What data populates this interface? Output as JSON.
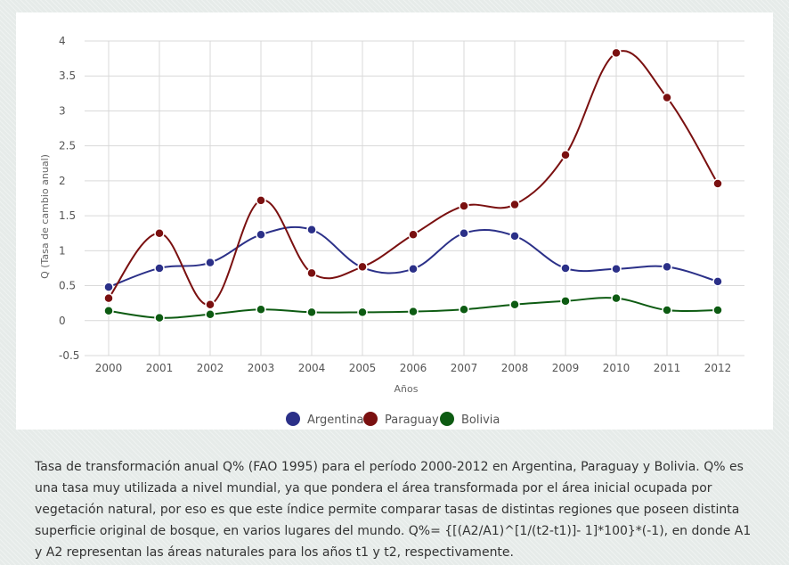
{
  "chart_data": {
    "type": "line",
    "title": "",
    "xlabel": "Años",
    "ylabel": "Q (Tasa de cambio anual)",
    "ylim": [
      -0.5,
      4
    ],
    "yticks": [
      "4",
      "3.5",
      "3",
      "2.5",
      "2",
      "1.5",
      "1",
      "0.5",
      "0",
      "-0.5"
    ],
    "ytick_values": [
      4,
      3.5,
      3,
      2.5,
      2,
      1.5,
      1,
      0.5,
      0,
      -0.5
    ],
    "grid": true,
    "legend": "bottom-center",
    "categories": [
      "2000",
      "2001",
      "2002",
      "2003",
      "2004",
      "2005",
      "2006",
      "2007",
      "2008",
      "2009",
      "2010",
      "2011",
      "2012"
    ],
    "series": [
      {
        "name": "Argentina",
        "color": "#2b3088",
        "values": [
          0.48,
          0.75,
          0.83,
          1.23,
          1.3,
          0.76,
          0.74,
          1.25,
          1.21,
          0.75,
          0.74,
          0.77,
          0.56
        ]
      },
      {
        "name": "Paraguay",
        "color": "#7a1010",
        "values": [
          0.32,
          1.25,
          0.23,
          1.72,
          0.68,
          0.77,
          1.23,
          1.64,
          1.66,
          2.37,
          3.83,
          3.19,
          1.96
        ]
      },
      {
        "name": "Bolivia",
        "color": "#0d5b12",
        "values": [
          0.14,
          0.04,
          0.09,
          0.16,
          0.12,
          0.12,
          0.13,
          0.16,
          0.23,
          0.28,
          0.32,
          0.15,
          0.15
        ]
      }
    ]
  },
  "caption": "Tasa de transformación anual Q% (FAO 1995) para el período 2000-2012 en Argentina, Paraguay y Bolivia. Q% es una tasa muy utilizada a nivel mundial, ya que pondera el área transformada por el área inicial ocupada por vegetación natural, por eso es que este índice permite comparar tasas de distintas regiones que poseen distinta superficie original de bosque, en varios lugares del mundo. Q%= {[(A2/A1)^[1/(t2-t1)]- 1]*100}*(-1), en donde A1 y A2 representan las áreas naturales para los años t1 y t2, respectivamente."
}
